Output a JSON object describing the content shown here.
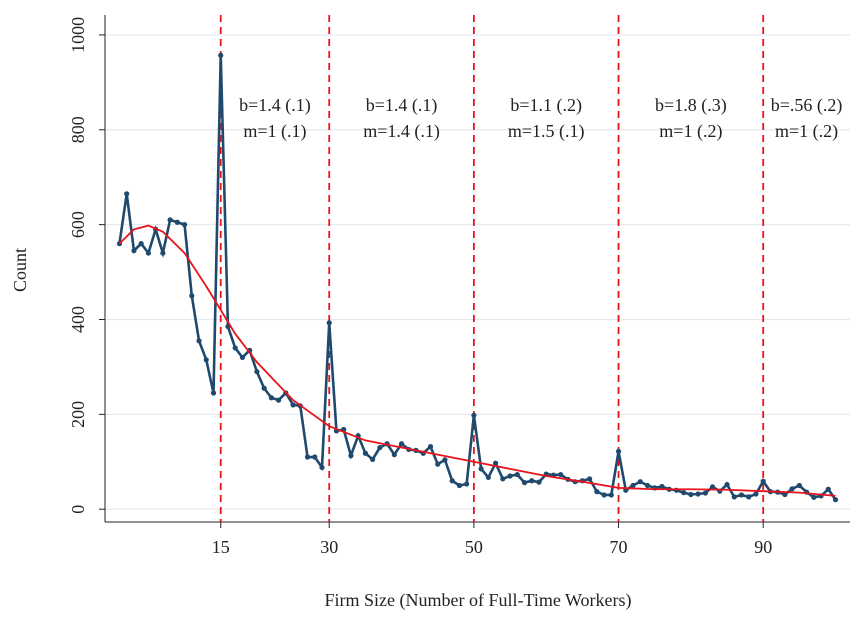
{
  "chart_data": {
    "type": "line",
    "x_label": "Firm Size (Number of Full-Time Workers)",
    "y_label": "Count",
    "xlim": [
      -1,
      102
    ],
    "ylim": [
      -27,
      1042
    ],
    "xticks": [
      15,
      30,
      50,
      70,
      90
    ],
    "yticks": [
      0,
      200,
      400,
      600,
      800,
      1000
    ],
    "grid": true,
    "vlines": [
      15,
      30,
      50,
      70,
      90
    ],
    "vline_color": "#e8141c",
    "annotations": [
      [
        "b=1.4 (.1)",
        "m=1 (.1)"
      ],
      [
        "b=1.4 (.1)",
        "m=1.4 (.1)"
      ],
      [
        "b=1.1 (.2)",
        "m=1.5 (.1)"
      ],
      [
        "b=1.8 (.3)",
        "m=1 (.2)"
      ],
      [
        "b=.56 (.2)",
        "m=1 (.2)"
      ]
    ],
    "series": [
      {
        "color": "#1f4a6e",
        "markers": true,
        "x": [
          1,
          2,
          3,
          4,
          5,
          6,
          7,
          8,
          9,
          10,
          11,
          12,
          13,
          14,
          15,
          16,
          17,
          18,
          19,
          20,
          21,
          22,
          23,
          24,
          25,
          26,
          27,
          28,
          29,
          30,
          31,
          32,
          33,
          34,
          35,
          36,
          37,
          38,
          39,
          40,
          41,
          42,
          43,
          44,
          45,
          46,
          47,
          48,
          49,
          50,
          51,
          52,
          53,
          54,
          55,
          56,
          57,
          58,
          59,
          60,
          61,
          62,
          63,
          64,
          65,
          66,
          67,
          68,
          69,
          70,
          71,
          72,
          73,
          74,
          75,
          76,
          77,
          78,
          79,
          80,
          81,
          82,
          83,
          84,
          85,
          86,
          87,
          88,
          89,
          90,
          91,
          92,
          93,
          94,
          95,
          96,
          97,
          98,
          99,
          100
        ],
        "values": [
          560,
          665,
          545,
          560,
          540,
          590,
          540,
          610,
          605,
          600,
          450,
          355,
          315,
          245,
          957,
          385,
          340,
          320,
          335,
          290,
          255,
          235,
          230,
          245,
          220,
          218,
          110,
          110,
          88,
          393,
          165,
          168,
          113,
          155,
          118,
          105,
          130,
          138,
          115,
          138,
          126,
          124,
          118,
          132,
          95,
          104,
          60,
          50,
          53,
          198,
          85,
          67,
          97,
          64,
          70,
          73,
          56,
          60,
          57,
          74,
          72,
          73,
          63,
          58,
          60,
          64,
          37,
          30,
          30,
          122,
          40,
          50,
          58,
          50,
          45,
          48,
          42,
          40,
          35,
          31,
          32,
          34,
          47,
          38,
          52,
          26,
          30,
          26,
          32,
          59,
          37,
          36,
          31,
          43,
          50,
          36,
          25,
          28,
          42,
          20
        ]
      },
      {
        "color": "#e8141c",
        "markers": false,
        "x": [
          1,
          3,
          5,
          7,
          10,
          13,
          15,
          17,
          20,
          25,
          30,
          35,
          40,
          45,
          50,
          55,
          60,
          65,
          70,
          75,
          80,
          85,
          90,
          95,
          100
        ],
        "values": [
          560,
          590,
          598,
          585,
          540,
          470,
          420,
          370,
          310,
          230,
          175,
          145,
          130,
          115,
          100,
          85,
          70,
          58,
          45,
          42,
          42,
          41,
          38,
          35,
          28
        ]
      }
    ]
  }
}
